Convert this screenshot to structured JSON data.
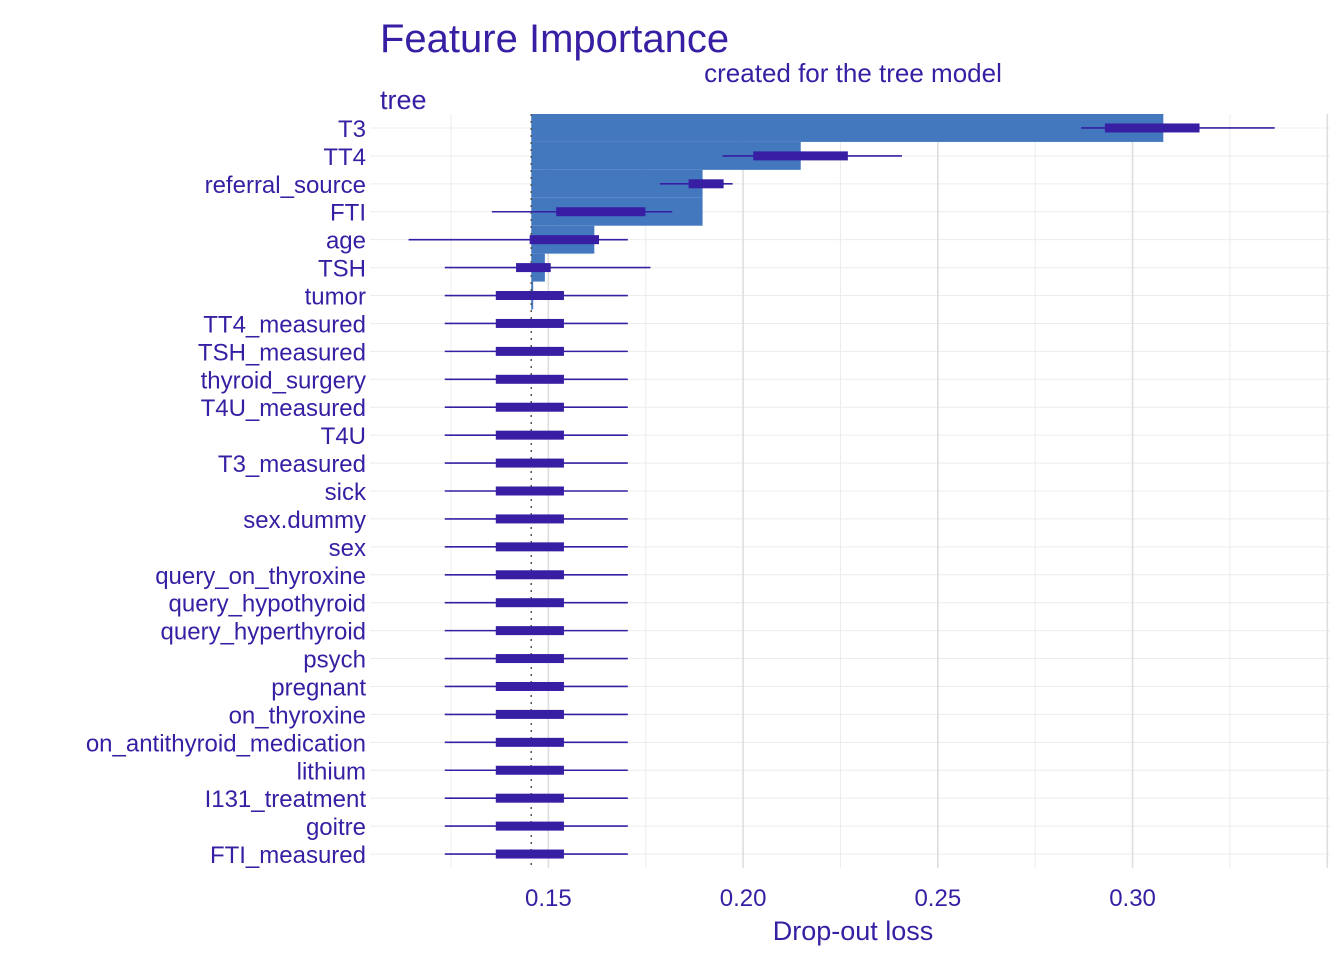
{
  "chart_data": {
    "type": "bar",
    "title": "Feature Importance",
    "subtitle": "created for the tree model",
    "panel_label": "tree",
    "xlabel": "Drop-out loss",
    "ylabel": "",
    "xlim": [
      0.1042,
      0.3507
    ],
    "xticks": [
      0.15,
      0.2,
      0.25,
      0.3
    ],
    "xtick_labels": [
      "0.15",
      "0.20",
      "0.25",
      "0.30"
    ],
    "baseline": 0.1456,
    "grid": true,
    "legend": "none",
    "colors": {
      "bar": "#4378bf",
      "boxplot": "#371ea3",
      "text": "#371ea3",
      "grid": "#e6e6e6",
      "baseline": "#555555"
    },
    "features": [
      {
        "name": "T3",
        "value": 0.3079,
        "whisker": [
          0.2868,
          0.3365
        ],
        "box": [
          0.2929,
          0.3172
        ]
      },
      {
        "name": "TT4",
        "value": 0.2148,
        "whisker": [
          0.1947,
          0.2408
        ],
        "box": [
          0.2026,
          0.2269
        ]
      },
      {
        "name": "referral_source",
        "value": 0.1896,
        "whisker": [
          0.1786,
          0.1973
        ],
        "box": [
          0.186,
          0.195
        ]
      },
      {
        "name": "FTI",
        "value": 0.1896,
        "whisker": [
          0.1355,
          0.1818
        ],
        "box": [
          0.152,
          0.1749
        ]
      },
      {
        "name": "age",
        "value": 0.1618,
        "whisker": [
          0.1141,
          0.1704
        ],
        "box": [
          0.1452,
          0.163
        ]
      },
      {
        "name": "TSH",
        "value": 0.1491,
        "whisker": [
          0.1234,
          0.1762
        ],
        "box": [
          0.1417,
          0.1506
        ]
      },
      {
        "name": "tumor",
        "value": 0.1461,
        "whisker": [
          0.1234,
          0.1704
        ],
        "box": [
          0.1365,
          0.154
        ]
      },
      {
        "name": "TT4_measured",
        "value": 0.1456,
        "whisker": [
          0.1234,
          0.1704
        ],
        "box": [
          0.1365,
          0.154
        ]
      },
      {
        "name": "TSH_measured",
        "value": 0.1456,
        "whisker": [
          0.1234,
          0.1704
        ],
        "box": [
          0.1365,
          0.154
        ]
      },
      {
        "name": "thyroid_surgery",
        "value": 0.1456,
        "whisker": [
          0.1234,
          0.1704
        ],
        "box": [
          0.1365,
          0.154
        ]
      },
      {
        "name": "T4U_measured",
        "value": 0.1456,
        "whisker": [
          0.1234,
          0.1704
        ],
        "box": [
          0.1365,
          0.154
        ]
      },
      {
        "name": "T4U",
        "value": 0.1456,
        "whisker": [
          0.1234,
          0.1704
        ],
        "box": [
          0.1365,
          0.154
        ]
      },
      {
        "name": "T3_measured",
        "value": 0.1456,
        "whisker": [
          0.1234,
          0.1704
        ],
        "box": [
          0.1365,
          0.154
        ]
      },
      {
        "name": "sick",
        "value": 0.1456,
        "whisker": [
          0.1234,
          0.1704
        ],
        "box": [
          0.1365,
          0.154
        ]
      },
      {
        "name": "sex.dummy",
        "value": 0.1456,
        "whisker": [
          0.1234,
          0.1704
        ],
        "box": [
          0.1365,
          0.154
        ]
      },
      {
        "name": "sex",
        "value": 0.1456,
        "whisker": [
          0.1234,
          0.1704
        ],
        "box": [
          0.1365,
          0.154
        ]
      },
      {
        "name": "query_on_thyroxine",
        "value": 0.1456,
        "whisker": [
          0.1234,
          0.1704
        ],
        "box": [
          0.1365,
          0.154
        ]
      },
      {
        "name": "query_hypothyroid",
        "value": 0.1456,
        "whisker": [
          0.1234,
          0.1704
        ],
        "box": [
          0.1365,
          0.154
        ]
      },
      {
        "name": "query_hyperthyroid",
        "value": 0.1456,
        "whisker": [
          0.1234,
          0.1704
        ],
        "box": [
          0.1365,
          0.154
        ]
      },
      {
        "name": "psych",
        "value": 0.1456,
        "whisker": [
          0.1234,
          0.1704
        ],
        "box": [
          0.1365,
          0.154
        ]
      },
      {
        "name": "pregnant",
        "value": 0.1456,
        "whisker": [
          0.1234,
          0.1704
        ],
        "box": [
          0.1365,
          0.154
        ]
      },
      {
        "name": "on_thyroxine",
        "value": 0.1456,
        "whisker": [
          0.1234,
          0.1704
        ],
        "box": [
          0.1365,
          0.154
        ]
      },
      {
        "name": "on_antithyroid_medication",
        "value": 0.1456,
        "whisker": [
          0.1234,
          0.1704
        ],
        "box": [
          0.1365,
          0.154
        ]
      },
      {
        "name": "lithium",
        "value": 0.1456,
        "whisker": [
          0.1234,
          0.1704
        ],
        "box": [
          0.1365,
          0.154
        ]
      },
      {
        "name": "I131_treatment",
        "value": 0.1456,
        "whisker": [
          0.1234,
          0.1704
        ],
        "box": [
          0.1365,
          0.154
        ]
      },
      {
        "name": "goitre",
        "value": 0.1456,
        "whisker": [
          0.1234,
          0.1704
        ],
        "box": [
          0.1365,
          0.154
        ]
      },
      {
        "name": "FTI_measured",
        "value": 0.1456,
        "whisker": [
          0.1234,
          0.1704
        ],
        "box": [
          0.1365,
          0.154
        ]
      }
    ]
  }
}
